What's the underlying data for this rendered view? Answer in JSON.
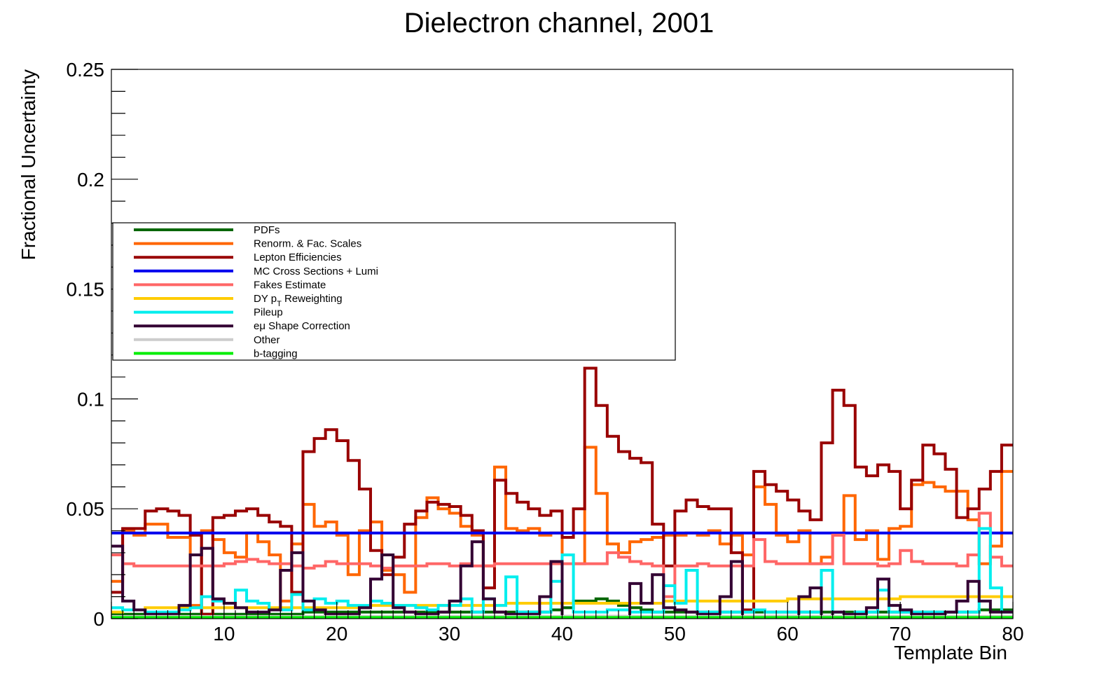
{
  "chart_data": {
    "type": "line",
    "step": true,
    "title": "Dielectron channel, 2001",
    "xlabel": "Template Bin",
    "ylabel": "Fractional Uncertainty",
    "xlim": [
      0,
      80
    ],
    "ylim": [
      0,
      0.25
    ],
    "x_ticks": [
      10,
      20,
      30,
      40,
      50,
      60,
      70,
      80
    ],
    "y_ticks": [
      0,
      0.05,
      0.1,
      0.15,
      0.2,
      0.25
    ],
    "y_tick_labels": [
      "0",
      "0.05",
      "0.1",
      "0.15",
      "0.2",
      "0.25"
    ],
    "grid": false,
    "legend_position": "left",
    "series": [
      {
        "name": "PDFs",
        "color": "#006600",
        "values": [
          0.002,
          0.002,
          0.002,
          0.002,
          0.002,
          0.002,
          0.002,
          0.002,
          0.002,
          0.002,
          0.002,
          0.002,
          0.002,
          0.002,
          0.002,
          0.002,
          0.002,
          0.003,
          0.003,
          0.003,
          0.003,
          0.003,
          0.003,
          0.003,
          0.003,
          0.003,
          0.003,
          0.003,
          0.003,
          0.003,
          0.003,
          0.003,
          0.003,
          0.003,
          0.003,
          0.003,
          0.003,
          0.003,
          0.003,
          0.004,
          0.005,
          0.008,
          0.008,
          0.009,
          0.008,
          0.006,
          0.005,
          0.004,
          0.003,
          0.003,
          0.003,
          0.003,
          0.003,
          0.003,
          0.003,
          0.003,
          0.003,
          0.003,
          0.003,
          0.003,
          0.003,
          0.003,
          0.003,
          0.003,
          0.003,
          0.003,
          0.003,
          0.003,
          0.003,
          0.003,
          0.003,
          0.003,
          0.003,
          0.003,
          0.003,
          0.003,
          0.003,
          0.004,
          0.004,
          0.004
        ]
      },
      {
        "name": "Renorm. & Fac. Scales",
        "color": "#ff6600",
        "values": [
          0.017,
          0.04,
          0.038,
          0.043,
          0.043,
          0.037,
          0.037,
          0.006,
          0.04,
          0.036,
          0.03,
          0.028,
          0.039,
          0.035,
          0.029,
          0.008,
          0.034,
          0.052,
          0.042,
          0.044,
          0.038,
          0.02,
          0.04,
          0.044,
          0.022,
          0.02,
          0.012,
          0.046,
          0.055,
          0.05,
          0.048,
          0.042,
          0.038,
          0.024,
          0.069,
          0.041,
          0.04,
          0.041,
          0.038,
          0.039,
          0.029,
          0.025,
          0.078,
          0.057,
          0.034,
          0.03,
          0.035,
          0.036,
          0.037,
          0.038,
          0.038,
          0.039,
          0.038,
          0.04,
          0.034,
          0.038,
          0.029,
          0.06,
          0.052,
          0.038,
          0.035,
          0.04,
          0.025,
          0.028,
          0.038,
          0.056,
          0.036,
          0.04,
          0.027,
          0.041,
          0.042,
          0.061,
          0.062,
          0.06,
          0.058,
          0.058,
          0.045,
          0.025,
          0.033,
          0.067
        ]
      },
      {
        "name": "Lepton Efficiencies",
        "color": "#990000",
        "values": [
          0.012,
          0.041,
          0.041,
          0.049,
          0.05,
          0.049,
          0.047,
          0.038,
          0.002,
          0.046,
          0.047,
          0.049,
          0.05,
          0.047,
          0.044,
          0.042,
          0.012,
          0.076,
          0.082,
          0.086,
          0.081,
          0.072,
          0.059,
          0.031,
          0.02,
          0.028,
          0.043,
          0.049,
          0.053,
          0.052,
          0.051,
          0.047,
          0.04,
          0.014,
          0.063,
          0.057,
          0.053,
          0.05,
          0.047,
          0.049,
          0.037,
          0.05,
          0.114,
          0.097,
          0.083,
          0.076,
          0.073,
          0.071,
          0.043,
          0.024,
          0.049,
          0.054,
          0.051,
          0.05,
          0.05,
          0.03,
          0.004,
          0.067,
          0.061,
          0.058,
          0.054,
          0.049,
          0.045,
          0.08,
          0.104,
          0.097,
          0.069,
          0.065,
          0.07,
          0.067,
          0.05,
          0.063,
          0.079,
          0.075,
          0.068,
          0.046,
          0.05,
          0.059,
          0.067,
          0.079
        ]
      },
      {
        "name": "MC Cross Sections + Lumi",
        "color": "#0000ee",
        "values": [
          0.039,
          0.039,
          0.039,
          0.039,
          0.039,
          0.039,
          0.039,
          0.039,
          0.039,
          0.039,
          0.039,
          0.039,
          0.039,
          0.039,
          0.039,
          0.039,
          0.039,
          0.039,
          0.039,
          0.039,
          0.039,
          0.039,
          0.039,
          0.039,
          0.039,
          0.039,
          0.039,
          0.039,
          0.039,
          0.039,
          0.039,
          0.039,
          0.039,
          0.039,
          0.039,
          0.039,
          0.039,
          0.039,
          0.039,
          0.039,
          0.039,
          0.039,
          0.039,
          0.039,
          0.039,
          0.039,
          0.039,
          0.039,
          0.039,
          0.039,
          0.039,
          0.039,
          0.039,
          0.039,
          0.039,
          0.039,
          0.039,
          0.039,
          0.039,
          0.039,
          0.039,
          0.039,
          0.039,
          0.039,
          0.039,
          0.039,
          0.039,
          0.039,
          0.039,
          0.039,
          0.039,
          0.039,
          0.039,
          0.039,
          0.039,
          0.039,
          0.039,
          0.039,
          0.039,
          0.039
        ]
      },
      {
        "name": "Fakes Estimate",
        "color": "#ff6666",
        "values": [
          0.029,
          0.025,
          0.024,
          0.024,
          0.024,
          0.024,
          0.024,
          0.024,
          0.024,
          0.024,
          0.025,
          0.026,
          0.027,
          0.026,
          0.025,
          0.025,
          0.024,
          0.023,
          0.024,
          0.026,
          0.025,
          0.025,
          0.025,
          0.024,
          0.023,
          0.024,
          0.024,
          0.024,
          0.025,
          0.025,
          0.024,
          0.025,
          0.024,
          0.024,
          0.025,
          0.025,
          0.025,
          0.025,
          0.025,
          0.025,
          0.025,
          0.025,
          0.025,
          0.025,
          0.03,
          0.028,
          0.026,
          0.025,
          0.024,
          0.01,
          0.024,
          0.024,
          0.025,
          0.024,
          0.024,
          0.024,
          0.024,
          0.036,
          0.026,
          0.025,
          0.025,
          0.025,
          0.025,
          0.025,
          0.038,
          0.025,
          0.025,
          0.025,
          0.024,
          0.025,
          0.031,
          0.026,
          0.025,
          0.025,
          0.025,
          0.024,
          0.029,
          0.048,
          0.028,
          0.024
        ]
      },
      {
        "name": "DY p_{T} Reweighting",
        "color": "#ffcc00",
        "values": [
          0.003,
          0.004,
          0.004,
          0.005,
          0.005,
          0.005,
          0.005,
          0.005,
          0.005,
          0.005,
          0.005,
          0.005,
          0.005,
          0.005,
          0.005,
          0.005,
          0.005,
          0.005,
          0.005,
          0.005,
          0.005,
          0.005,
          0.005,
          0.006,
          0.006,
          0.006,
          0.006,
          0.006,
          0.006,
          0.006,
          0.006,
          0.006,
          0.006,
          0.006,
          0.006,
          0.007,
          0.007,
          0.007,
          0.007,
          0.007,
          0.007,
          0.007,
          0.007,
          0.007,
          0.007,
          0.007,
          0.007,
          0.007,
          0.007,
          0.008,
          0.008,
          0.008,
          0.008,
          0.008,
          0.008,
          0.008,
          0.008,
          0.008,
          0.008,
          0.008,
          0.009,
          0.009,
          0.009,
          0.009,
          0.009,
          0.009,
          0.009,
          0.009,
          0.009,
          0.009,
          0.01,
          0.01,
          0.01,
          0.01,
          0.01,
          0.01,
          0.01,
          0.01,
          0.01,
          0.01
        ]
      },
      {
        "name": "Pileup",
        "color": "#00eeee",
        "values": [
          0.005,
          0.004,
          0.004,
          0.003,
          0.003,
          0.003,
          0.004,
          0.005,
          0.01,
          0.008,
          0.007,
          0.013,
          0.008,
          0.007,
          0.004,
          0.004,
          0.011,
          0.004,
          0.009,
          0.007,
          0.008,
          0.006,
          0.006,
          0.008,
          0.007,
          0.006,
          0.006,
          0.005,
          0.004,
          0.006,
          0.006,
          0.009,
          0.003,
          0.009,
          0.006,
          0.019,
          0.003,
          0.003,
          0.003,
          0.017,
          0.029,
          0.003,
          0.003,
          0.003,
          0.004,
          0.004,
          0.003,
          0.003,
          0.003,
          0.015,
          0.007,
          0.022,
          0.003,
          0.003,
          0.003,
          0.003,
          0.003,
          0.004,
          0.003,
          0.003,
          0.003,
          0.003,
          0.003,
          0.022,
          0.003,
          0.002,
          0.003,
          0.003,
          0.013,
          0.003,
          0.003,
          0.003,
          0.003,
          0.003,
          0.003,
          0.003,
          0.003,
          0.041,
          0.014,
          0.003
        ]
      },
      {
        "name": "eμ Shape Correction",
        "color": "#330033",
        "values": [
          0.033,
          0.008,
          0.004,
          0.002,
          0.002,
          0.002,
          0.006,
          0.029,
          0.032,
          0.009,
          0.007,
          0.005,
          0.003,
          0.003,
          0.004,
          0.022,
          0.03,
          0.008,
          0.004,
          0.002,
          0.002,
          0.002,
          0.005,
          0.018,
          0.029,
          0.005,
          0.003,
          0.002,
          0.002,
          0.003,
          0.008,
          0.024,
          0.035,
          0.009,
          0.003,
          0.002,
          0.002,
          0.002,
          0.01,
          0.026,
          0.001,
          0.001,
          0.001,
          0.001,
          0.001,
          0.001,
          0.016,
          0.007,
          0.02,
          0.005,
          0.004,
          0.003,
          0.002,
          0.002,
          0.01,
          0.026,
          0.001,
          0.001,
          0.001,
          0.001,
          0.001,
          0.01,
          0.014,
          0.001,
          0.003,
          0.002,
          0.002,
          0.005,
          0.018,
          0.006,
          0.004,
          0.002,
          0.002,
          0.002,
          0.003,
          0.008,
          0.017,
          0.008,
          0.003,
          0.003
        ]
      },
      {
        "name": "Other",
        "color": "#cccccc",
        "values": [
          0.001,
          0.001,
          0.001,
          0.001,
          0.001,
          0.001,
          0.001,
          0.001,
          0.001,
          0.001,
          0.001,
          0.001,
          0.001,
          0.001,
          0.001,
          0.001,
          0.001,
          0.001,
          0.001,
          0.001,
          0.001,
          0.001,
          0.001,
          0.001,
          0.001,
          0.001,
          0.001,
          0.001,
          0.001,
          0.001,
          0.001,
          0.001,
          0.001,
          0.001,
          0.001,
          0.001,
          0.001,
          0.001,
          0.001,
          0.001,
          0.001,
          0.001,
          0.001,
          0.001,
          0.001,
          0.001,
          0.001,
          0.001,
          0.001,
          0.001,
          0.001,
          0.001,
          0.001,
          0.001,
          0.001,
          0.001,
          0.001,
          0.001,
          0.001,
          0.001,
          0.001,
          0.001,
          0.001,
          0.001,
          0.001,
          0.001,
          0.001,
          0.001,
          0.001,
          0.001,
          0.001,
          0.001,
          0.001,
          0.001,
          0.001,
          0.001,
          0.001,
          0.001,
          0.001,
          0.001
        ]
      },
      {
        "name": "b-tagging",
        "color": "#00ee00",
        "values": [
          0.0005,
          0.0005,
          0.0005,
          0.0005,
          0.0005,
          0.0005,
          0.0005,
          0.0005,
          0.0005,
          0.0005,
          0.0005,
          0.0005,
          0.0005,
          0.0005,
          0.0005,
          0.0005,
          0.0005,
          0.0005,
          0.0005,
          0.0005,
          0.0005,
          0.0005,
          0.0005,
          0.0005,
          0.0005,
          0.0005,
          0.0005,
          0.0005,
          0.0005,
          0.0005,
          0.0005,
          0.0005,
          0.0005,
          0.0005,
          0.0005,
          0.0005,
          0.0005,
          0.0005,
          0.0005,
          0.0005,
          0.0005,
          0.0005,
          0.0005,
          0.0005,
          0.0005,
          0.0005,
          0.0005,
          0.0005,
          0.0005,
          0.0005,
          0.0005,
          0.0005,
          0.0005,
          0.0005,
          0.0005,
          0.0005,
          0.0005,
          0.0005,
          0.0005,
          0.0005,
          0.0005,
          0.0005,
          0.0005,
          0.0005,
          0.0005,
          0.0005,
          0.0005,
          0.0005,
          0.0005,
          0.0005,
          0.0005,
          0.0005,
          0.0005,
          0.0005,
          0.0005,
          0.0005,
          0.0005,
          0.0005,
          0.0005,
          0.0005
        ]
      }
    ]
  }
}
